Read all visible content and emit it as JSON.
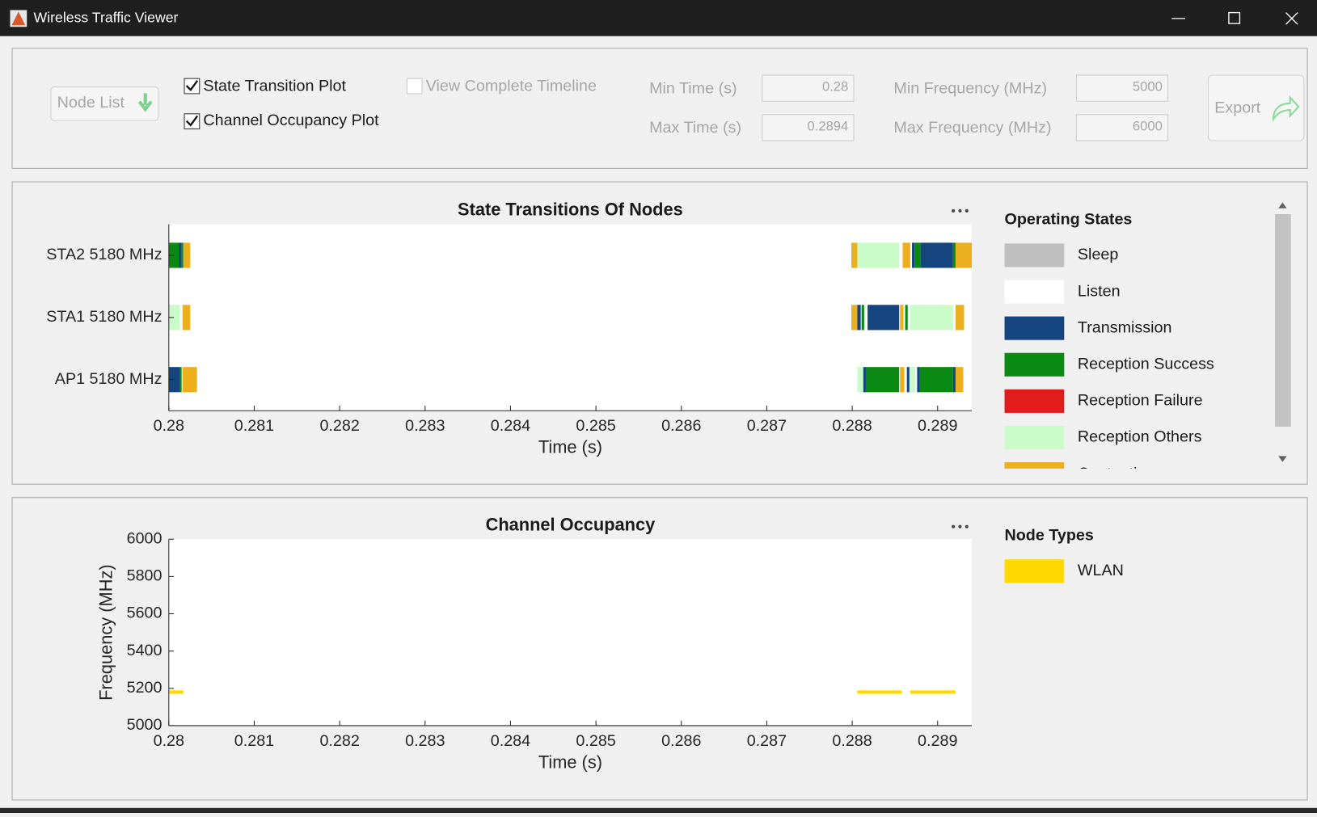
{
  "window": {
    "title": "Wireless Traffic Viewer"
  },
  "controls": {
    "node_list": "Node List",
    "state_transition_plot": {
      "label": "State Transition Plot",
      "checked": true
    },
    "channel_occupancy_plot": {
      "label": "Channel Occupancy Plot",
      "checked": true
    },
    "view_complete_timeline": {
      "label": "View Complete Timeline",
      "checked": false
    },
    "min_time": {
      "label": "Min Time (s)",
      "value": 0.28
    },
    "max_time": {
      "label": "Max Time (s)",
      "value": 0.2894
    },
    "min_frequency": {
      "label": "Min Frequency (MHz)",
      "value": 5000
    },
    "max_frequency": {
      "label": "Max Frequency (MHz)",
      "value": 6000
    },
    "export": "Export"
  },
  "chart_data": [
    {
      "type": "timeline",
      "title": "State Transitions Of Nodes",
      "xlabel": "Time (s)",
      "xlim": [
        0.28,
        0.2894
      ],
      "xticks": [
        0.28,
        0.281,
        0.282,
        0.283,
        0.284,
        0.285,
        0.286,
        0.287,
        0.288,
        0.289
      ],
      "categories": [
        "STA2 5180 MHz",
        "STA1 5180 MHz",
        "AP1 5180 MHz"
      ],
      "legend_title": "Operating States",
      "states": [
        {
          "name": "Sleep",
          "color": "#bfbfbf"
        },
        {
          "name": "Listen",
          "color": "#ffffff"
        },
        {
          "name": "Transmission",
          "color": "#15457f"
        },
        {
          "name": "Reception Success",
          "color": "#0a8a12"
        },
        {
          "name": "Reception Failure",
          "color": "#e21b1b"
        },
        {
          "name": "Reception Others",
          "color": "#c9fcc9"
        },
        {
          "name": "Contention",
          "color": "#ecb01f"
        }
      ],
      "segments": [
        [
          {
            "start": 0.28,
            "end": 0.28012,
            "state": "Reception Success"
          },
          {
            "start": 0.28012,
            "end": 0.28015,
            "state": "Transmission"
          },
          {
            "start": 0.28015,
            "end": 0.28017,
            "state": "Reception Success"
          },
          {
            "start": 0.28017,
            "end": 0.28025,
            "state": "Contention"
          },
          {
            "start": 0.28799,
            "end": 0.28806,
            "state": "Contention"
          },
          {
            "start": 0.28806,
            "end": 0.28855,
            "state": "Reception Others"
          },
          {
            "start": 0.28859,
            "end": 0.28868,
            "state": "Contention"
          },
          {
            "start": 0.2887,
            "end": 0.28873,
            "state": "Transmission"
          },
          {
            "start": 0.28873,
            "end": 0.2888,
            "state": "Reception Success"
          },
          {
            "start": 0.2888,
            "end": 0.28918,
            "state": "Transmission"
          },
          {
            "start": 0.28918,
            "end": 0.28921,
            "state": "Reception Success"
          },
          {
            "start": 0.28921,
            "end": 0.2894,
            "state": "Contention"
          }
        ],
        [
          {
            "start": 0.28,
            "end": 0.28013,
            "state": "Reception Others"
          },
          {
            "start": 0.28016,
            "end": 0.28025,
            "state": "Contention"
          },
          {
            "start": 0.28799,
            "end": 0.28806,
            "state": "Contention"
          },
          {
            "start": 0.28806,
            "end": 0.2881,
            "state": "Transmission"
          },
          {
            "start": 0.28811,
            "end": 0.28814,
            "state": "Reception Success"
          },
          {
            "start": 0.28818,
            "end": 0.28855,
            "state": "Transmission"
          },
          {
            "start": 0.28856,
            "end": 0.2886,
            "state": "Contention"
          },
          {
            "start": 0.28862,
            "end": 0.28865,
            "state": "Reception Success"
          },
          {
            "start": 0.28868,
            "end": 0.28918,
            "state": "Reception Others"
          },
          {
            "start": 0.28921,
            "end": 0.28931,
            "state": "Contention"
          }
        ],
        [
          {
            "start": 0.28,
            "end": 0.28013,
            "state": "Transmission"
          },
          {
            "start": 0.28013,
            "end": 0.28015,
            "state": "Reception Success"
          },
          {
            "start": 0.28016,
            "end": 0.28033,
            "state": "Contention"
          },
          {
            "start": 0.28806,
            "end": 0.28813,
            "state": "Reception Others"
          },
          {
            "start": 0.28813,
            "end": 0.28816,
            "state": "Transmission"
          },
          {
            "start": 0.28816,
            "end": 0.28855,
            "state": "Reception Success"
          },
          {
            "start": 0.28856,
            "end": 0.28861,
            "state": "Contention"
          },
          {
            "start": 0.28864,
            "end": 0.28867,
            "state": "Transmission"
          },
          {
            "start": 0.28867,
            "end": 0.28874,
            "state": "Reception Others"
          },
          {
            "start": 0.28876,
            "end": 0.28879,
            "state": "Transmission"
          },
          {
            "start": 0.28879,
            "end": 0.28918,
            "state": "Reception Success"
          },
          {
            "start": 0.28918,
            "end": 0.28921,
            "state": "Transmission"
          },
          {
            "start": 0.28921,
            "end": 0.2893,
            "state": "Contention"
          }
        ]
      ]
    },
    {
      "type": "occupancy",
      "title": "Channel Occupancy",
      "xlabel": "Time (s)",
      "ylabel": "Frequency (MHz)",
      "xlim": [
        0.28,
        0.2894
      ],
      "xticks": [
        0.28,
        0.281,
        0.282,
        0.283,
        0.284,
        0.285,
        0.286,
        0.287,
        0.288,
        0.289
      ],
      "ylim": [
        5000,
        6000
      ],
      "yticks": [
        5000,
        5200,
        5400,
        5600,
        5800,
        6000
      ],
      "legend_title": "Node Types",
      "series": [
        {
          "name": "WLAN",
          "color": "#ffd900",
          "segments": [
            {
              "start": 0.28,
              "end": 0.28017,
              "frequency": 5180
            },
            {
              "start": 0.28806,
              "end": 0.28858,
              "frequency": 5180
            },
            {
              "start": 0.28868,
              "end": 0.28921,
              "frequency": 5180
            }
          ]
        }
      ]
    }
  ]
}
